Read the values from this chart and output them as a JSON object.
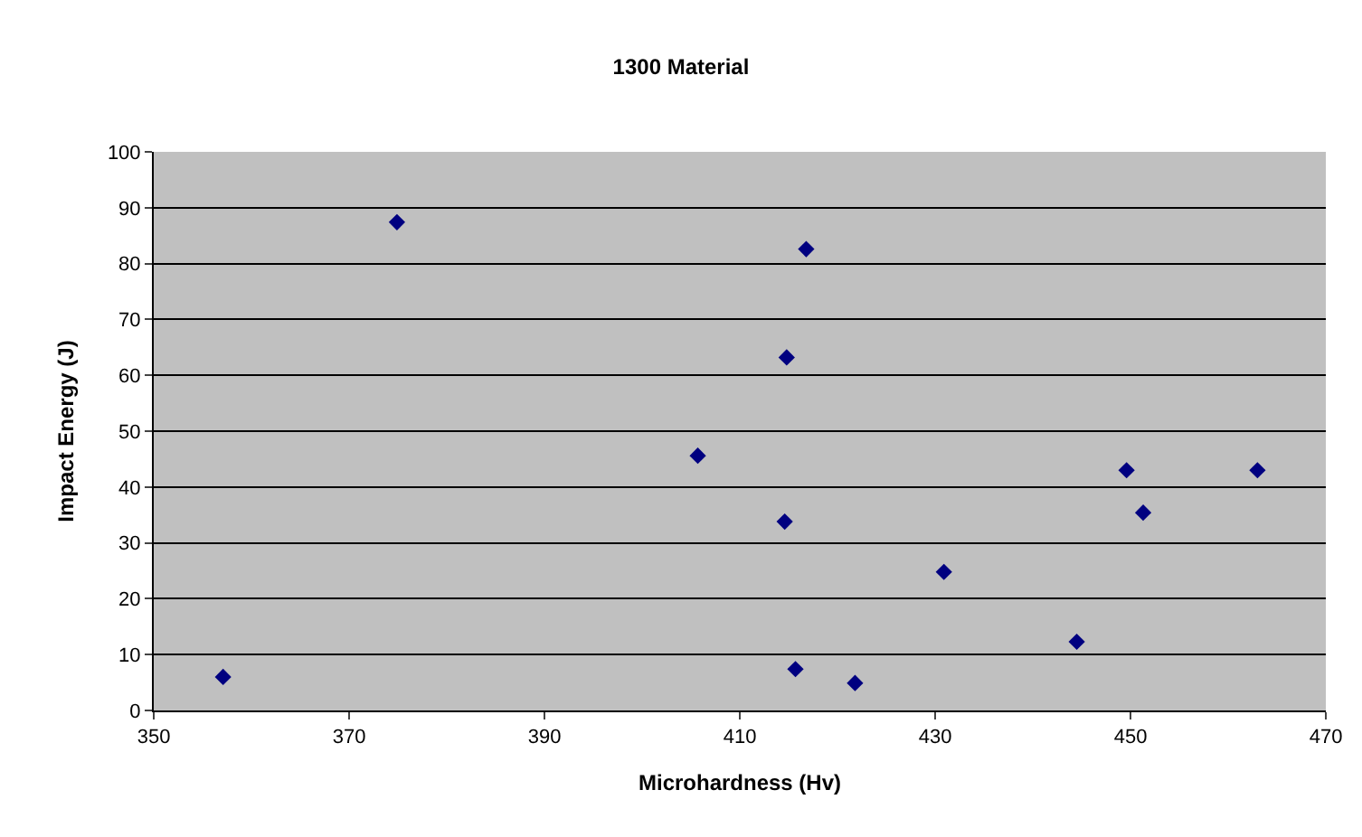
{
  "chart_data": {
    "type": "scatter",
    "title": "1300 Material",
    "xlabel": "Microhardness (Hv)",
    "ylabel": "Impact Energy (J)",
    "x": [
      357.1,
      374.9,
      405.7,
      416.8,
      414.8,
      414.6,
      415.7,
      421.8,
      430.9,
      444.5,
      449.6,
      451.3,
      463.0
    ],
    "series": [
      {
        "color": "#000080",
        "values": [
          6.0,
          87.4,
          45.6,
          82.6,
          63.2,
          33.8,
          7.4,
          4.9,
          24.8,
          12.3,
          43.0,
          35.4,
          43.0
        ]
      }
    ],
    "xlim": [
      350,
      470
    ],
    "xticks": [
      350,
      370,
      390,
      410,
      430,
      450,
      470
    ],
    "ylim": [
      0,
      100
    ],
    "yticks": [
      0,
      10,
      20,
      30,
      40,
      50,
      60,
      70,
      80,
      90,
      100
    ],
    "grid": "y",
    "marker": "diamond"
  }
}
